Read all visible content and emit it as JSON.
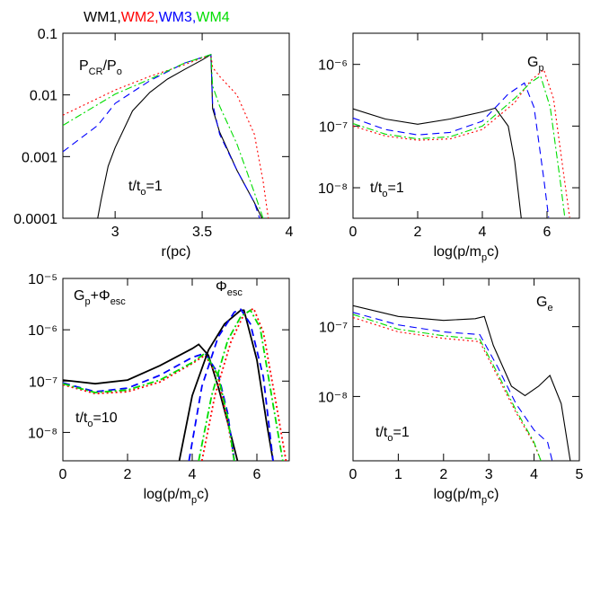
{
  "chart_data": [
    {
      "type": "line",
      "ylog": true,
      "legend": true,
      "legend_separator": ",",
      "xlim": [
        2.7,
        4
      ],
      "xticks": [
        3,
        3.5,
        4
      ],
      "ylim": [
        0.0001,
        0.1
      ],
      "yticks": [
        0.0001,
        0.001,
        0.01,
        0.1
      ],
      "xlabel": [
        {
          "text": "r(pc)"
        }
      ],
      "annotations": [
        {
          "runs": [
            {
              "text": "P"
            },
            {
              "text": "CR",
              "sub": true
            },
            {
              "text": "/P"
            },
            {
              "text": "o",
              "sub": true
            }
          ]
        },
        {
          "runs": [
            {
              "text": "t/t"
            },
            {
              "text": "o",
              "sub": true
            },
            {
              "text": "=1"
            }
          ]
        }
      ],
      "series": [
        {
          "name": "WM1",
          "color": "#000000",
          "dash": "solid",
          "x": [
            2.88,
            2.92,
            2.96,
            3.0,
            3.1,
            3.2,
            3.3,
            3.4,
            3.5,
            3.55,
            3.56,
            3.6,
            3.7,
            3.8,
            3.86
          ],
          "values": [
            5e-05,
            0.0002,
            0.0007,
            0.0014,
            0.0055,
            0.011,
            0.018,
            0.026,
            0.037,
            0.045,
            0.006,
            0.0025,
            0.0006,
            0.00018,
            8e-05
          ]
        },
        {
          "name": "WM2",
          "color": "#ff0000",
          "dash": "dotted",
          "x": [
            2.7,
            3.0,
            3.2,
            3.4,
            3.55,
            3.56,
            3.6,
            3.7,
            3.8,
            3.85,
            3.88
          ],
          "values": [
            0.0047,
            0.012,
            0.02,
            0.031,
            0.045,
            0.028,
            0.02,
            0.01,
            0.0023,
            0.0004,
            0.0001
          ]
        },
        {
          "name": "WM3",
          "color": "#0000ff",
          "dash": "dashed",
          "x": [
            2.7,
            2.9,
            3.0,
            3.2,
            3.4,
            3.55,
            3.56,
            3.6,
            3.7,
            3.8,
            3.83
          ],
          "values": [
            0.0012,
            0.0032,
            0.0073,
            0.017,
            0.033,
            0.045,
            0.0073,
            0.0023,
            0.0006,
            0.00018,
            0.0001
          ]
        },
        {
          "name": "WM4",
          "color": "#00dd00",
          "dash": "dashdot",
          "x": [
            2.7,
            3.0,
            3.2,
            3.4,
            3.55,
            3.56,
            3.6,
            3.7,
            3.8,
            3.85
          ],
          "values": [
            0.0032,
            0.0103,
            0.018,
            0.033,
            0.045,
            0.014,
            0.0066,
            0.0016,
            0.00026,
            0.0001
          ]
        }
      ]
    },
    {
      "type": "line",
      "ylog": true,
      "xlim": [
        0,
        7
      ],
      "xticks": [
        0,
        2,
        4,
        6
      ],
      "ylim": [
        3.2e-09,
        3.2e-06
      ],
      "yticks": [
        {
          "value": 1e-08,
          "label": "10⁻⁸"
        },
        {
          "value": 1e-07,
          "label": "10⁻⁷"
        },
        {
          "value": 1e-06,
          "label": "10⁻⁶"
        }
      ],
      "xlabel": [
        {
          "text": "log(p/m"
        },
        {
          "text": "p",
          "sub": true
        },
        {
          "text": "c)"
        }
      ],
      "annotations": [
        {
          "runs": [
            {
              "text": "G"
            },
            {
              "text": "p",
              "sub": true
            }
          ]
        },
        {
          "runs": [
            {
              "text": "t/t"
            },
            {
              "text": "o",
              "sub": true
            },
            {
              "text": "=1"
            }
          ]
        }
      ],
      "series": [
        {
          "color": "#000000",
          "dash": "solid",
          "x": [
            0,
            1,
            2,
            3,
            4,
            4.4,
            4.8,
            5.0,
            5.2,
            5.25
          ],
          "values": [
            1.9e-07,
            1.3e-07,
            1.07e-07,
            1.3e-07,
            1.7e-07,
            1.95e-07,
            1e-07,
            2.7e-08,
            3.3e-09,
            2e-09
          ]
        },
        {
          "color": "#ff0000",
          "dash": "dotted",
          "x": [
            0,
            1,
            2,
            3,
            4,
            5,
            5.5,
            5.9,
            6.2,
            6.5,
            6.7
          ],
          "values": [
            1e-07,
            6.9e-08,
            5.9e-08,
            6.2e-08,
            8.8e-08,
            2.4e-07,
            5.5e-07,
            8.2e-07,
            2.8e-07,
            1.9e-08,
            3.3e-09
          ]
        },
        {
          "color": "#0000ff",
          "dash": "dashed",
          "x": [
            0,
            1,
            2,
            3,
            4,
            4.8,
            5.3,
            5.6,
            5.9,
            6.05
          ],
          "values": [
            1.35e-07,
            8.8e-08,
            7.2e-08,
            7.9e-08,
            1.2e-07,
            3.3e-07,
            5e-07,
            2e-07,
            1.4e-08,
            3.3e-09
          ]
        },
        {
          "color": "#00dd00",
          "dash": "dashdot",
          "x": [
            0,
            1,
            2,
            3,
            4,
            5,
            5.5,
            5.8,
            6.1,
            6.4,
            6.55
          ],
          "values": [
            1.1e-07,
            7.4e-08,
            6.2e-08,
            6.7e-08,
            1e-07,
            2.8e-07,
            5.1e-07,
            6.5e-07,
            2e-07,
            1.4e-08,
            3.3e-09
          ]
        }
      ]
    },
    {
      "type": "line",
      "ylog": true,
      "thick": true,
      "xlim": [
        0,
        7
      ],
      "xticks": [
        0,
        2,
        4,
        6
      ],
      "ylim": [
        2.8e-09,
        1e-05
      ],
      "yticks": [
        {
          "value": 1e-08,
          "label": "10⁻⁸"
        },
        {
          "value": 1e-07,
          "label": "10⁻⁷"
        },
        {
          "value": 1e-06,
          "label": "10⁻⁶"
        },
        {
          "value": 1e-05,
          "label": "10⁻⁵"
        }
      ],
      "xlabel": [
        {
          "text": "log(p/m"
        },
        {
          "text": "p",
          "sub": true
        },
        {
          "text": "c)"
        }
      ],
      "annotations": [
        {
          "runs": [
            {
              "text": "G"
            },
            {
              "text": "p",
              "sub": true
            },
            {
              "text": "+Φ"
            },
            {
              "text": "esc",
              "sub": true
            }
          ]
        },
        {
          "runs": [
            {
              "text": "Φ"
            },
            {
              "text": "esc",
              "sub": true
            }
          ]
        },
        {
          "runs": [
            {
              "text": "t/t"
            },
            {
              "text": "o",
              "sub": true
            },
            {
              "text": "=10"
            }
          ]
        }
      ],
      "series": [
        {
          "color": "#000000",
          "dash": "solid",
          "x": [
            0,
            1,
            2,
            3,
            4,
            4.2,
            4.5,
            4.8,
            5.1,
            5.4
          ],
          "values": [
            1.05e-07,
            8.9e-08,
            1.05e-07,
            2e-07,
            4.3e-07,
            5.2e-07,
            3.2e-07,
            7.9e-08,
            1.55e-08,
            2.8e-09
          ]
        },
        {
          "color": "#ff0000",
          "dash": "dotted",
          "x": [
            0,
            1,
            2,
            3,
            4,
            4.4,
            4.8,
            5.1,
            5.3
          ],
          "values": [
            8.5e-08,
            5.7e-08,
            6.2e-08,
            9.6e-08,
            2.2e-07,
            3.2e-07,
            1.2e-07,
            1.55e-08,
            2.8e-09
          ]
        },
        {
          "color": "#0000ff",
          "dash": "dashed",
          "x": [
            0,
            1,
            2,
            3,
            4,
            4.4,
            4.8,
            5.1,
            5.3
          ],
          "values": [
            9.2e-08,
            6.2e-08,
            7.3e-08,
            1.3e-07,
            2.9e-07,
            3.5e-07,
            1.4e-07,
            2.3e-08,
            2.8e-09
          ]
        },
        {
          "color": "#00dd00",
          "dash": "dashdot",
          "x": [
            0,
            1,
            2,
            3,
            4,
            4.4,
            4.8,
            5.1,
            5.3
          ],
          "values": [
            8.9e-08,
            6e-08,
            6.7e-08,
            1.05e-07,
            2.3e-07,
            3.5e-07,
            1.3e-07,
            1.9e-08,
            2.8e-09
          ]
        },
        {
          "color": "#000000",
          "dash": "solid",
          "x": [
            3.6,
            4.0,
            4.5,
            5.0,
            5.5,
            5.6,
            6.0,
            6.3,
            6.5
          ],
          "values": [
            2.8e-09,
            5.2e-08,
            4e-07,
            1.3e-06,
            2.4e-06,
            2.4e-06,
            2.6e-07,
            1.55e-08,
            2.8e-09
          ]
        },
        {
          "color": "#ff0000",
          "dash": "dotted",
          "x": [
            4.3,
            4.7,
            5.2,
            5.6,
            5.9,
            6.2,
            6.6,
            6.9
          ],
          "values": [
            2.8e-09,
            5.2e-08,
            5.9e-07,
            2e-06,
            2.6e-06,
            8.9e-07,
            3.5e-08,
            2.8e-09
          ]
        },
        {
          "color": "#0000ff",
          "dash": "dashed",
          "x": [
            3.9,
            4.3,
            4.8,
            5.3,
            5.5,
            5.8,
            6.2,
            6.5
          ],
          "values": [
            2.8e-09,
            7.9e-08,
            7.2e-07,
            2.2e-06,
            2.5e-06,
            1.3e-06,
            1.2e-07,
            2.8e-09
          ]
        },
        {
          "color": "#00dd00",
          "dash": "dashdot",
          "x": [
            4.2,
            4.6,
            5.1,
            5.5,
            5.8,
            6.1,
            6.5,
            6.8
          ],
          "values": [
            2.8e-09,
            5.2e-08,
            6.3e-07,
            1.8e-06,
            2.4e-06,
            1.1e-06,
            3.5e-08,
            2.8e-09
          ]
        }
      ]
    },
    {
      "type": "line",
      "ylog": true,
      "xlim": [
        0,
        5
      ],
      "xticks": [
        0,
        1,
        2,
        3,
        4,
        5
      ],
      "ylim": [
        1.2e-09,
        4.9e-07
      ],
      "yticks": [
        {
          "value": 1e-08,
          "label": "10⁻⁸"
        },
        {
          "value": 1e-07,
          "label": "10⁻⁷"
        }
      ],
      "xlabel": [
        {
          "text": "log(p/m"
        },
        {
          "text": "p",
          "sub": true
        },
        {
          "text": "c)"
        }
      ],
      "annotations": [
        {
          "runs": [
            {
              "text": "G"
            },
            {
              "text": "e",
              "sub": true
            }
          ]
        },
        {
          "runs": [
            {
              "text": "t/t"
            },
            {
              "text": "o",
              "sub": true
            },
            {
              "text": "=1"
            }
          ]
        }
      ],
      "series": [
        {
          "color": "#000000",
          "dash": "solid",
          "x": [
            0,
            1,
            2,
            2.7,
            2.9,
            3.1,
            3.5,
            3.8,
            4.1,
            4.35,
            4.6,
            4.8
          ],
          "values": [
            2e-07,
            1.4e-07,
            1.23e-07,
            1.3e-07,
            1.4e-07,
            5.4e-08,
            1.4e-08,
            1.03e-08,
            1.4e-08,
            2e-08,
            7.9e-09,
            1.2e-09
          ]
        },
        {
          "color": "#ff0000",
          "dash": "dotted",
          "x": [
            0,
            1,
            2,
            2.8,
            3.2,
            3.6,
            4.0,
            4.15
          ],
          "values": [
            1.35e-07,
            8.4e-08,
            6.8e-08,
            6.1e-08,
            1.9e-08,
            5.9e-09,
            2.1e-09,
            1.2e-09
          ]
        },
        {
          "color": "#0000ff",
          "dash": "dashed",
          "x": [
            0,
            1,
            2,
            2.8,
            3.2,
            3.6,
            4.0,
            4.3,
            4.4
          ],
          "values": [
            1.6e-07,
            1.06e-07,
            8.4e-08,
            7.7e-08,
            2.6e-08,
            7.9e-09,
            3.3e-09,
            2.2e-09,
            1.2e-09
          ]
        },
        {
          "color": "#00dd00",
          "dash": "dashdot",
          "x": [
            0,
            1,
            2,
            2.8,
            3.2,
            3.6,
            4.0,
            4.15
          ],
          "values": [
            1.5e-07,
            9.2e-08,
            7.4e-08,
            6.6e-08,
            2.1e-08,
            6.4e-09,
            2.2e-09,
            1.2e-09
          ]
        }
      ]
    }
  ]
}
